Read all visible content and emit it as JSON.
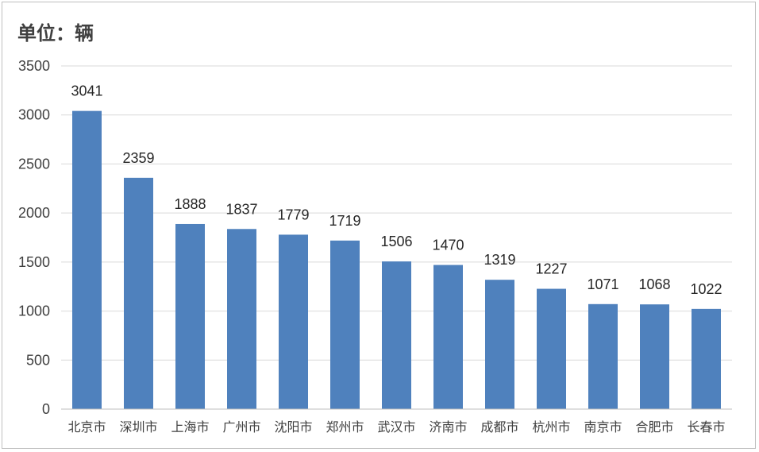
{
  "chart_data": {
    "type": "bar",
    "title": "",
    "unit_label": "单位：辆",
    "xlabel": "",
    "ylabel": "",
    "ylim": [
      0,
      3500
    ],
    "yticks": [
      0,
      500,
      1000,
      1500,
      2000,
      2500,
      3000,
      3500
    ],
    "grid": true,
    "legend": "none",
    "bar_color": "#4f81bd",
    "categories": [
      "北京市",
      "深圳市",
      "上海市",
      "广州市",
      "沈阳市",
      "郑州市",
      "武汉市",
      "济南市",
      "成都市",
      "杭州市",
      "南京市",
      "合肥市",
      "长春市"
    ],
    "values": [
      3041,
      2359,
      1888,
      1837,
      1779,
      1719,
      1506,
      1470,
      1319,
      1227,
      1071,
      1068,
      1022
    ]
  }
}
